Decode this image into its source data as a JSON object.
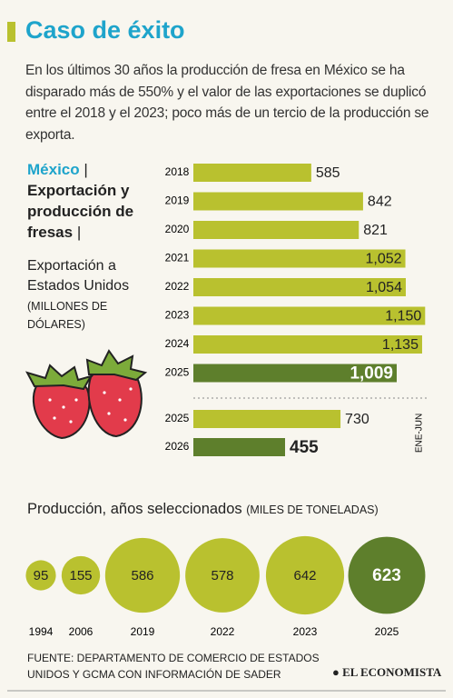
{
  "header": {
    "title": "Caso de éxito",
    "intro": "En los últimos 30 años la producción de fresa en México se ha disparado más de 550% y el valor de las exportaciones se duplicó entre el 2018 y el 2023; poco más de un tercio de la producción se exporta."
  },
  "chart_data": [
    {
      "type": "bar",
      "title": "México",
      "title_separator": "|",
      "subtitle": "Exportación y producción de fresas",
      "ylabel": "Exportación a Estados Unidos",
      "unit": "(MILLONES DE DÓLARES)",
      "categories": [
        "2018",
        "2019",
        "2020",
        "2021",
        "2022",
        "2023",
        "2024",
        "2025"
      ],
      "values": [
        585,
        842,
        821,
        1052,
        1054,
        1150,
        1135,
        1009
      ],
      "value_labels": [
        "585",
        "842",
        "821",
        "1,052",
        "1,054",
        "1,150",
        "1,135",
        "1,009"
      ],
      "colors": [
        "#b9c12f",
        "#b9c12f",
        "#b9c12f",
        "#b9c12f",
        "#b9c12f",
        "#b9c12f",
        "#b9c12f",
        "#5e7f2c"
      ]
    },
    {
      "type": "bar",
      "annotation": "ENE-JUN",
      "categories": [
        "2025",
        "2026"
      ],
      "values": [
        730,
        455
      ],
      "colors": [
        "#b9c12f",
        "#5e7f2c"
      ]
    },
    {
      "type": "bubble",
      "title": "Producción, años seleccionados",
      "subtitle": "(MILES DE TONELADAS)",
      "categories": [
        "1994",
        "2006",
        "2019",
        "2022",
        "2023",
        "2025"
      ],
      "values": [
        95,
        155,
        586,
        578,
        642,
        623
      ],
      "colors": [
        "#b9c12f",
        "#b9c12f",
        "#b9c12f",
        "#b9c12f",
        "#b9c12f",
        "#5e7f2c"
      ]
    }
  ],
  "footer": {
    "source": "FUENTE: DEPARTAMENTO DE COMERCIO DE ESTADOS UNIDOS Y GCMA CON INFORMACIÓN DE SADER",
    "brand": "EL ECONOMISTA"
  }
}
